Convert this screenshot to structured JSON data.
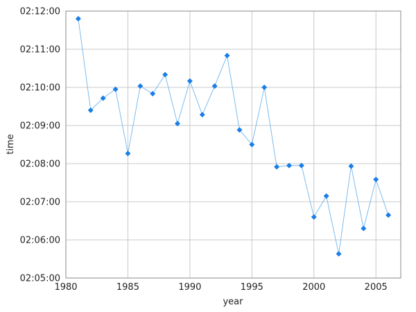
{
  "chart_data": {
    "type": "line",
    "xlabel": "year",
    "ylabel": "time",
    "xlim": [
      1980,
      2007
    ],
    "ylim": [
      "02:05:00",
      "02:12:00"
    ],
    "x_ticks": [
      "1980",
      "1985",
      "1990",
      "1995",
      "2000",
      "2005"
    ],
    "y_ticks": [
      "02:05:00",
      "02:06:00",
      "02:07:00",
      "02:08:00",
      "02:09:00",
      "02:10:00",
      "02:11:00",
      "02:12:00"
    ],
    "grid": true,
    "line_color": "#6eb4ec",
    "marker_color": "#1a7ee6",
    "marker": "diamond",
    "series": [
      {
        "x": [
          1981,
          1982,
          1983,
          1984,
          1985,
          1986,
          1987,
          1988,
          1989,
          1990,
          1991,
          1992,
          1993,
          1994,
          1995,
          1996,
          1997,
          1998,
          1999,
          2000,
          2001,
          2002,
          2003,
          2004,
          2005,
          2006
        ],
        "y": [
          "02:11:48",
          "02:09:24",
          "02:09:43",
          "02:09:57",
          "02:08:16",
          "02:10:02",
          "02:09:50",
          "02:10:20",
          "02:09:03",
          "02:10:10",
          "02:09:17",
          "02:10:02",
          "02:10:50",
          "02:08:53",
          "02:08:30",
          "02:10:00",
          "02:07:55",
          "02:07:57",
          "02:07:57",
          "02:06:36",
          "02:07:09",
          "02:05:38",
          "02:07:56",
          "02:06:18",
          "02:07:35",
          "02:06:39"
        ]
      }
    ]
  }
}
